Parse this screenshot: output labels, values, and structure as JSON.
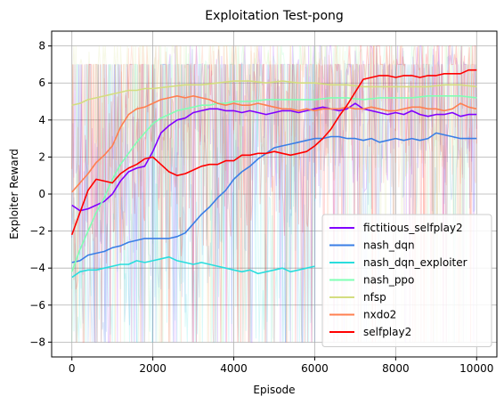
{
  "chart_data": {
    "type": "line",
    "title": "Exploitation Test-pong",
    "xlabel": "Episode",
    "ylabel": "Exploiter Reward",
    "xlim": [
      -500,
      10500
    ],
    "ylim": [
      -8.8,
      8.8
    ],
    "xticks": [
      0,
      2000,
      4000,
      6000,
      8000,
      10000
    ],
    "yticks": [
      -8,
      -6,
      -4,
      -2,
      0,
      2,
      4,
      6,
      8
    ],
    "grid": true,
    "legend_position": "lower-right",
    "series": [
      {
        "name": "fictitious_selfplay2",
        "color": "#8000ff",
        "x": [
          0,
          200,
          400,
          600,
          800,
          1000,
          1200,
          1400,
          1600,
          1800,
          2000,
          2200,
          2400,
          2600,
          2800,
          3000,
          3200,
          3400,
          3600,
          3800,
          4000,
          4200,
          4400,
          4600,
          4800,
          5000,
          5200,
          5400,
          5600,
          5800,
          6000,
          6200,
          6400,
          6600,
          6800,
          7000,
          7200,
          7400,
          7600,
          7800,
          8000,
          8200,
          8400,
          8600,
          8800,
          9000,
          9200,
          9400,
          9600,
          9800,
          10000
        ],
        "values": [
          -0.6,
          -0.9,
          -0.8,
          -0.6,
          -0.4,
          0.0,
          0.7,
          1.2,
          1.4,
          1.5,
          2.3,
          3.3,
          3.7,
          4.0,
          4.1,
          4.4,
          4.5,
          4.6,
          4.6,
          4.5,
          4.5,
          4.4,
          4.5,
          4.4,
          4.3,
          4.4,
          4.5,
          4.5,
          4.4,
          4.5,
          4.6,
          4.7,
          4.6,
          4.5,
          4.6,
          4.9,
          4.6,
          4.5,
          4.4,
          4.3,
          4.4,
          4.3,
          4.5,
          4.3,
          4.2,
          4.3,
          4.3,
          4.4,
          4.2,
          4.3,
          4.3
        ]
      },
      {
        "name": "nash_dqn",
        "color": "#3a7ee6",
        "x": [
          0,
          200,
          400,
          600,
          800,
          1000,
          1200,
          1400,
          1600,
          1800,
          2000,
          2200,
          2400,
          2600,
          2800,
          3000,
          3200,
          3400,
          3600,
          3800,
          4000,
          4200,
          4400,
          4600,
          4800,
          5000,
          5200,
          5400,
          5600,
          5800,
          6000,
          6200,
          6400,
          6600,
          6800,
          7000,
          7200,
          7400,
          7600,
          7800,
          8000,
          8200,
          8400,
          8600,
          8800,
          9000,
          9200,
          9400,
          9600,
          9800,
          10000
        ],
        "values": [
          -3.7,
          -3.6,
          -3.3,
          -3.2,
          -3.1,
          -2.9,
          -2.8,
          -2.6,
          -2.5,
          -2.4,
          -2.4,
          -2.4,
          -2.4,
          -2.3,
          -2.1,
          -1.6,
          -1.1,
          -0.7,
          -0.2,
          0.2,
          0.8,
          1.2,
          1.5,
          1.9,
          2.2,
          2.5,
          2.6,
          2.7,
          2.8,
          2.9,
          3.0,
          3.0,
          3.1,
          3.1,
          3.0,
          3.0,
          2.9,
          3.0,
          2.8,
          2.9,
          3.0,
          2.9,
          3.0,
          2.9,
          3.0,
          3.3,
          3.2,
          3.1,
          3.0,
          3.0,
          3.0
        ]
      },
      {
        "name": "nash_dqn_exploiter",
        "color": "#2adddd",
        "x": [
          0,
          200,
          400,
          600,
          800,
          1000,
          1200,
          1400,
          1600,
          1800,
          2000,
          2200,
          2400,
          2600,
          2800,
          3000,
          3200,
          3400,
          3600,
          3800,
          4000,
          4200,
          4400,
          4600,
          4800,
          5000,
          5200,
          5400,
          5600,
          5800,
          6000
        ],
        "values": [
          -4.5,
          -4.2,
          -4.1,
          -4.1,
          -4.0,
          -3.9,
          -3.8,
          -3.8,
          -3.6,
          -3.7,
          -3.6,
          -3.5,
          -3.4,
          -3.6,
          -3.7,
          -3.8,
          -3.7,
          -3.8,
          -3.9,
          -4.0,
          -4.1,
          -4.2,
          -4.1,
          -4.3,
          -4.2,
          -4.1,
          -4.0,
          -4.2,
          -4.1,
          -4.0,
          -3.9
        ]
      },
      {
        "name": "nash_ppo",
        "color": "#80ffb4",
        "x": [
          0,
          200,
          400,
          600,
          800,
          1000,
          1200,
          1400,
          1600,
          1800,
          2000,
          2200,
          2400,
          2600,
          2800,
          3000,
          3200,
          3400,
          3600,
          3800,
          4000,
          4400,
          4800,
          5200,
          5600,
          6000,
          6400,
          6800,
          7200,
          7600,
          8000,
          8400,
          8800,
          9200,
          9600,
          10000
        ],
        "values": [
          -4.2,
          -3.0,
          -2.0,
          -1.0,
          -0.2,
          0.8,
          1.6,
          2.2,
          2.8,
          3.3,
          3.8,
          4.1,
          4.3,
          4.5,
          4.6,
          4.7,
          4.8,
          4.8,
          4.9,
          4.9,
          5.0,
          5.0,
          5.1,
          5.1,
          5.1,
          5.1,
          5.2,
          5.2,
          5.1,
          5.2,
          5.2,
          5.2,
          5.3,
          5.3,
          5.3,
          5.2
        ]
      },
      {
        "name": "nfsp",
        "color": "#d4dd80",
        "x": [
          0,
          200,
          400,
          600,
          800,
          1000,
          1200,
          1400,
          1600,
          1800,
          2000,
          2400,
          2800,
          3200,
          3600,
          4000,
          4400,
          4800,
          5200,
          5600,
          6000,
          6400,
          6800,
          7200,
          7600,
          8000,
          8400,
          8800,
          9200,
          9600,
          10000
        ],
        "values": [
          4.8,
          4.9,
          5.1,
          5.2,
          5.3,
          5.4,
          5.5,
          5.6,
          5.6,
          5.7,
          5.7,
          5.8,
          5.9,
          5.9,
          6.0,
          6.1,
          6.1,
          6.0,
          6.1,
          6.0,
          6.0,
          5.9,
          5.9,
          5.8,
          5.8,
          5.8,
          5.8,
          5.8,
          5.9,
          5.9,
          5.8
        ]
      },
      {
        "name": "nxdo2",
        "color": "#ff7f50",
        "x": [
          0,
          200,
          400,
          600,
          800,
          1000,
          1200,
          1400,
          1600,
          1800,
          2000,
          2200,
          2400,
          2600,
          2800,
          3000,
          3200,
          3400,
          3600,
          3800,
          4000,
          4200,
          4400,
          4600,
          4800,
          5000,
          5200,
          5400,
          5600,
          5800,
          6000,
          6200,
          6400,
          6600,
          6800,
          7000,
          7200,
          7400,
          7600,
          7800,
          8000,
          8200,
          8400,
          8600,
          8800,
          9000,
          9200,
          9400,
          9600,
          9800,
          10000
        ],
        "values": [
          0.1,
          0.6,
          1.1,
          1.7,
          2.1,
          2.6,
          3.6,
          4.3,
          4.6,
          4.7,
          4.9,
          5.1,
          5.2,
          5.3,
          5.2,
          5.3,
          5.2,
          5.1,
          4.9,
          4.8,
          4.9,
          4.8,
          4.8,
          4.9,
          4.8,
          4.7,
          4.6,
          4.6,
          4.5,
          4.6,
          4.5,
          4.6,
          4.6,
          4.6,
          4.7,
          4.6,
          4.6,
          4.7,
          4.6,
          4.5,
          4.5,
          4.6,
          4.7,
          4.7,
          4.6,
          4.6,
          4.5,
          4.6,
          4.9,
          4.7,
          4.6
        ]
      },
      {
        "name": "selfplay2",
        "color": "#ff0000",
        "x": [
          0,
          200,
          400,
          600,
          800,
          1000,
          1200,
          1400,
          1600,
          1800,
          2000,
          2200,
          2400,
          2600,
          2800,
          3000,
          3200,
          3400,
          3600,
          3800,
          4000,
          4200,
          4400,
          4600,
          4800,
          5000,
          5200,
          5400,
          5600,
          5800,
          6000,
          6200,
          6400,
          6600,
          6800,
          7000,
          7200,
          7400,
          7600,
          7800,
          8000,
          8200,
          8400,
          8600,
          8800,
          9000,
          9200,
          9400,
          9600,
          9800,
          10000
        ],
        "values": [
          -2.2,
          -1.0,
          0.2,
          0.8,
          0.7,
          0.6,
          1.1,
          1.4,
          1.6,
          1.9,
          2.0,
          1.6,
          1.2,
          1.0,
          1.1,
          1.3,
          1.5,
          1.6,
          1.6,
          1.8,
          1.8,
          2.1,
          2.1,
          2.2,
          2.2,
          2.3,
          2.2,
          2.1,
          2.2,
          2.3,
          2.6,
          3.0,
          3.5,
          4.2,
          4.8,
          5.5,
          6.2,
          6.3,
          6.4,
          6.4,
          6.3,
          6.4,
          6.4,
          6.3,
          6.4,
          6.4,
          6.5,
          6.5,
          6.5,
          6.7,
          6.7
        ]
      }
    ]
  }
}
